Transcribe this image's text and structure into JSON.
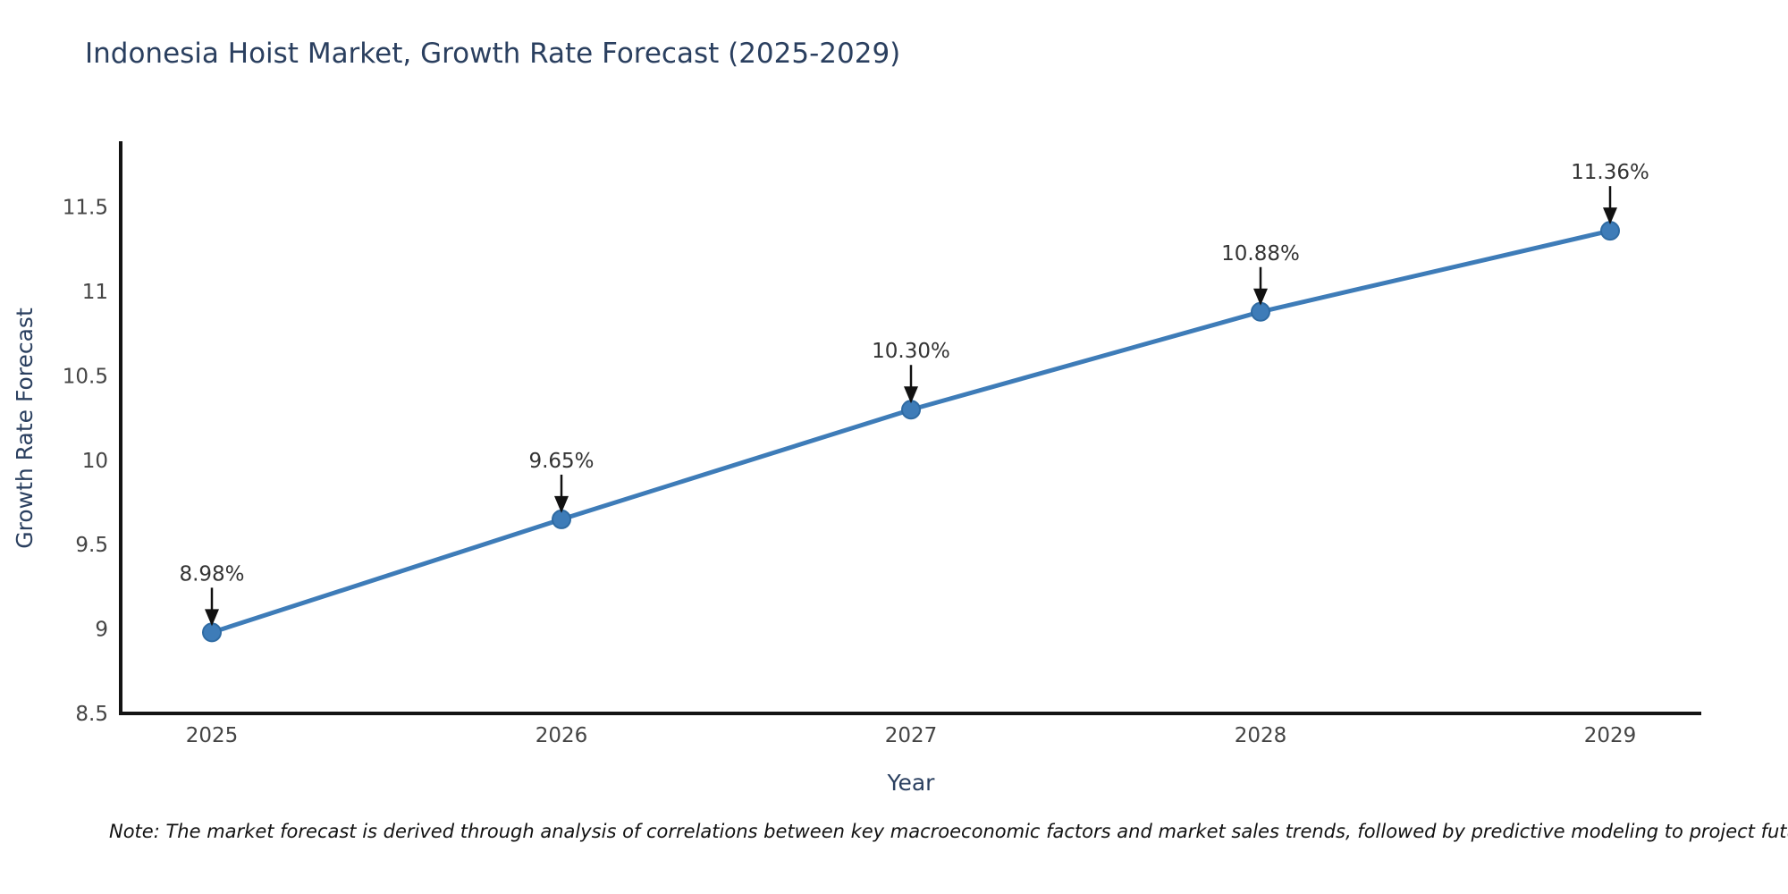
{
  "title": "Indonesia Hoist Market, Growth Rate Forecast (2025-2029)",
  "note": "Note: The market forecast is derived through analysis of correlations between key macroeconomic factors and market sales trends, followed by predictive modeling to project future sal",
  "chart_data": {
    "type": "line",
    "title": "Indonesia Hoist Market, Growth Rate Forecast (2025-2029)",
    "x": [
      "2025",
      "2026",
      "2027",
      "2028",
      "2029"
    ],
    "series": [
      {
        "name": "Growth Rate Forecast",
        "values": [
          8.98,
          9.65,
          10.3,
          10.88,
          11.36
        ],
        "point_labels": [
          "8.98%",
          "9.65%",
          "10.30%",
          "10.88%",
          "11.36%"
        ]
      }
    ],
    "xlabel": "Year",
    "ylabel": "Growth Rate Forecast",
    "ylim": [
      8.5,
      11.88
    ],
    "yticks": [
      "8.5",
      "9",
      "9.5",
      "10",
      "10.5",
      "11",
      "11.5"
    ],
    "ytick_values": [
      8.5,
      9,
      9.5,
      10,
      10.5,
      11,
      11.5
    ],
    "grid": false,
    "legend_position": "none",
    "annotation_arrows": true,
    "marker": "circle",
    "colors": {
      "line": "#3e7cb8",
      "marker_fill": "#3e7cb8",
      "marker_edge": "#2f6ba3",
      "axis_line": "#141414",
      "title_text": "#2a3f5f",
      "axis_title_text": "#2a3f5f",
      "tick_text": "#444444",
      "annotation_text": "#333333",
      "arrow": "#111111",
      "background": "#ffffff"
    }
  }
}
